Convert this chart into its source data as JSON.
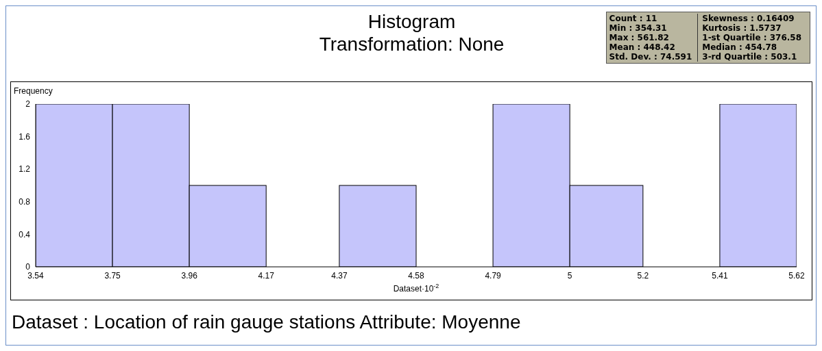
{
  "chart_data": {
    "type": "histogram",
    "title": "Histogram\nTransformation: None",
    "xlabel": "Dataset·10$^{-2}$",
    "ylabel": "Frequency",
    "bins": [
      3.54,
      3.75,
      3.96,
      4.17,
      4.37,
      4.58,
      4.79,
      5,
      5.2,
      5.41,
      5.62
    ],
    "values": [
      2,
      2,
      1,
      0,
      1,
      0,
      2,
      1,
      0,
      2
    ],
    "color": "#c5c5fb",
    "xlim": [
      3.54,
      5.62
    ],
    "xticks": [
      3.54,
      3.75,
      3.96,
      4.17,
      4.37,
      4.58,
      4.79,
      5,
      5.2,
      5.41,
      5.62
    ],
    "ylim": [
      0,
      2
    ],
    "yticks": [
      0,
      0.4,
      0.8,
      1.2,
      1.6,
      2
    ],
    "annotations": [
      "Dataset : Location of rain gauge stations Attribute: Moyenne",
      "Count : 11",
      "Min : 354.31",
      "Max : 561.82",
      "Mean : 448.42",
      "Std. Dev. : 74.591",
      "Skewness : 0.16409",
      "Kurtosis : 1.5737",
      "1-st Quartile : 376.58",
      "Median : 454.78",
      "3-rd Quartile : 503.1"
    ]
  }
}
